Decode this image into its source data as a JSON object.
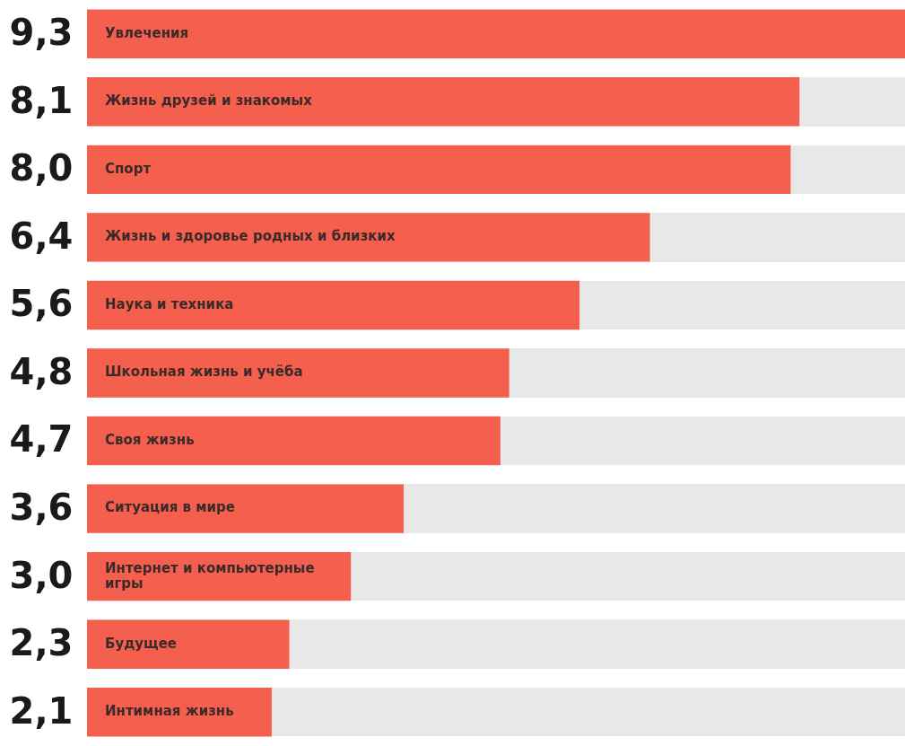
{
  "chart_data": {
    "type": "bar",
    "orientation": "horizontal",
    "categories": [
      "Увлечения",
      "Жизнь друзей и знакомых",
      "Спорт",
      "Жизнь и здоровье родных и близких",
      "Наука и техника",
      "Школьная жизнь и учёба",
      "Своя жизнь",
      "Ситуация в мире",
      "Интернет и компьютерные игры",
      "Будущее",
      "Интимная жизнь"
    ],
    "values": [
      9.3,
      8.1,
      8.0,
      6.4,
      5.6,
      4.8,
      4.7,
      3.6,
      3.0,
      2.3,
      2.1
    ],
    "value_labels": [
      "9,3",
      "8,1",
      "8,0",
      "6,4",
      "5,6",
      "4,8",
      "4,7",
      "3,6",
      "3,0",
      "2,3",
      "2,1"
    ],
    "color": "#f55f4e",
    "xlim": [
      0,
      9.3
    ]
  }
}
